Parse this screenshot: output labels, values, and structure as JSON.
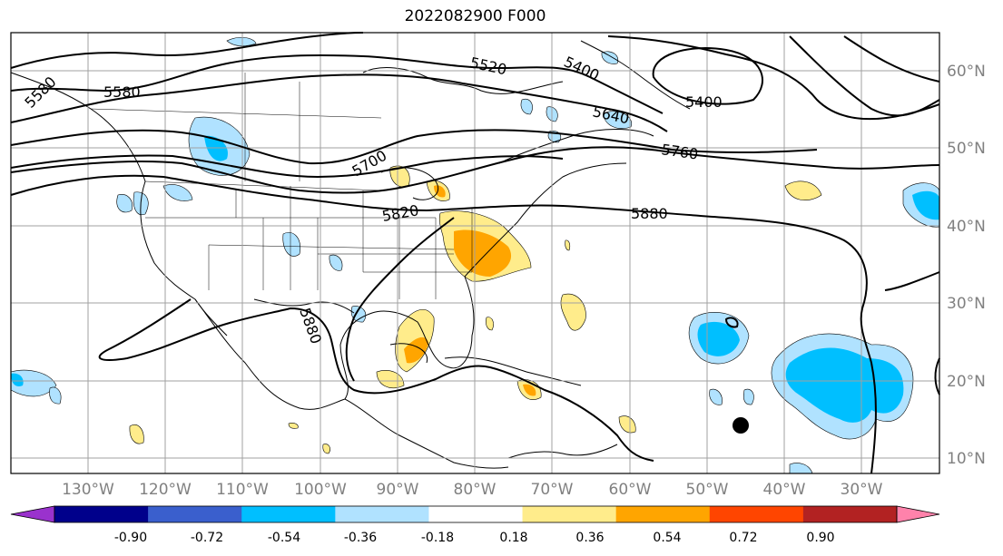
{
  "title": "2022082900 F000",
  "map": {
    "lat_labels": [
      "60°N",
      "50°N",
      "40°N",
      "30°N",
      "20°N",
      "10°N"
    ],
    "lon_labels": [
      "130°W",
      "120°W",
      "110°W",
      "100°W",
      "90°W",
      "80°W",
      "70°W",
      "60°W",
      "50°W",
      "40°W",
      "30°W"
    ],
    "lat_range": [
      8,
      65
    ],
    "lon_range": [
      -137,
      -17
    ],
    "grid": true,
    "height_contour_labels": [
      "5580",
      "5520",
      "5400",
      "5400",
      "5640",
      "5760",
      "5700",
      "5820",
      "5880",
      "5880",
      "5580"
    ],
    "storm_marker": {
      "lat": 14,
      "lon": -46
    }
  },
  "colorbar": {
    "ticks": [
      "-0.90",
      "-0.72",
      "-0.54",
      "-0.36",
      "-0.18",
      "0.18",
      "0.36",
      "0.54",
      "0.72",
      "0.90"
    ],
    "colors": [
      "#9a32cd",
      "#00008b",
      "#3a5fcd",
      "#00bfff",
      "#b0e2ff",
      "#ffffff",
      "#ffec8b",
      "#ffa500",
      "#ff4500",
      "#b22222",
      "#ff82ab"
    ],
    "extend": "both"
  }
}
